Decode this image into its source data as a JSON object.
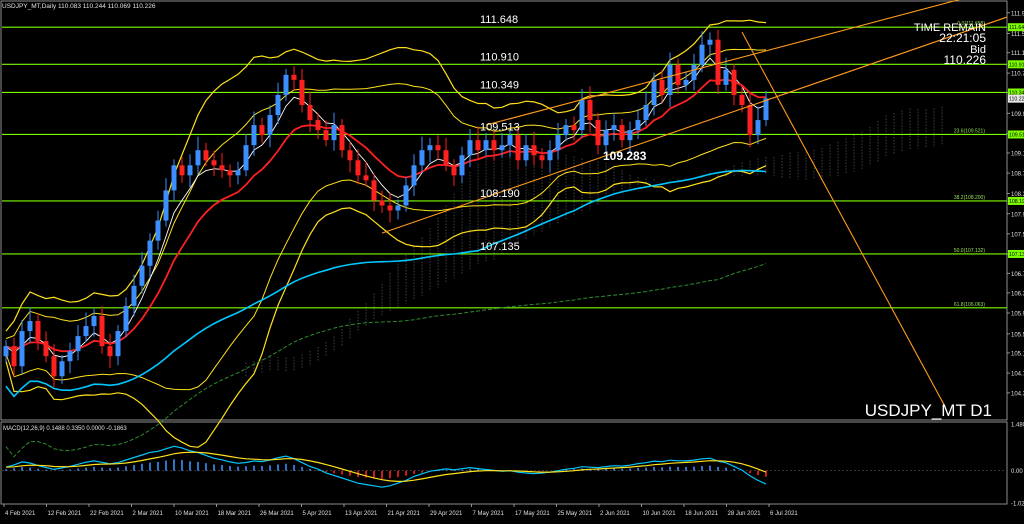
{
  "header": {
    "symbol_line": "USDJPY_MT,Daily  110.083 110.244 110.069 110.226"
  },
  "info_panel": {
    "time_label": "TIME REMAIN",
    "time_value": "22:21:05",
    "bid_label": "Bid",
    "bid_value": "110.226"
  },
  "watermark": "USDJPY_MT D1",
  "macd_label": "MACD(12,26,9) 0.1488 0.3350 0.0000 -0.1863",
  "colors": {
    "background": "#000000",
    "bull_candle": "#3d8eff",
    "bear_candle": "#ff2020",
    "horizontal_level": "#7CFC00",
    "ema_fast": "#ff2020",
    "ema_slow": "#ffffff",
    "bollinger": "#ffe11a",
    "ma_long": "#00c8ff",
    "ma_200": "#2e8b2e",
    "trend_channel": "#ff9b1a",
    "macd_line": "#00c8ff",
    "macd_signal": "#ffe11a"
  },
  "chart_data": [
    {
      "type": "line",
      "title": "USDJPY_MT,Daily",
      "xlabel": "",
      "ylabel": "",
      "ylim": [
        103.85,
        112.15
      ],
      "x_tick_labels": [
        "4 Feb 2021",
        "12 Feb 2021",
        "22 Feb 2021",
        "2 Mar 2021",
        "10 Mar 2021",
        "18 Mar 2021",
        "26 Mar 2021",
        "5 Apr 2021",
        "13 Apr 2021",
        "21 Apr 2021",
        "29 Apr 2021",
        "7 May 2021",
        "17 May 2021",
        "25 May 2021",
        "2 Jun 2021",
        "10 Jun 2021",
        "18 Jun 2021",
        "28 Jun 2021",
        "6 Jul 2021"
      ],
      "y_tick_labels": [
        "111.935",
        "111.525",
        "111.140",
        "110.735",
        "110.349",
        "109.935",
        "109.535",
        "109.145",
        "108.745",
        "108.340",
        "107.935",
        "107.535",
        "107.130",
        "106.750",
        "106.360",
        "105.960",
        "105.545",
        "105.165",
        "104.765",
        "104.370"
      ],
      "horizontal_levels": [
        {
          "label": "111.648",
          "value": 111.648,
          "fib": "0.0(111.658)"
        },
        {
          "label": "110.910",
          "value": 110.91,
          "fib": ""
        },
        {
          "label": "110.349",
          "value": 110.349,
          "fib": ""
        },
        {
          "label": "109.513",
          "value": 109.513,
          "fib": "23.6(109.521)"
        },
        {
          "label": "108.190",
          "value": 108.19,
          "fib": "38.2(108.200)"
        },
        {
          "label": "107.135",
          "value": 107.135,
          "fib": "50.0(107.132)"
        },
        {
          "label": "",
          "value": 106.063,
          "fib": "61.8(106.063)"
        }
      ],
      "level_tags": [
        "111.648",
        "110.910",
        "110.349",
        "109.513",
        "108.190",
        "107.135",
        "110.226"
      ],
      "annotation": "109.283",
      "close_series": [
        105.3,
        104.9,
        105.6,
        105.8,
        105.4,
        105.1,
        104.7,
        105.0,
        105.2,
        105.5,
        105.7,
        105.9,
        105.3,
        105.1,
        105.6,
        106.1,
        106.5,
        106.9,
        107.4,
        107.8,
        108.4,
        108.9,
        108.7,
        108.9,
        109.2,
        109.0,
        108.9,
        108.8,
        108.7,
        108.8,
        109.3,
        109.7,
        109.5,
        109.9,
        110.3,
        110.7,
        110.6,
        110.1,
        109.8,
        109.6,
        109.4,
        109.7,
        109.2,
        109.0,
        108.7,
        108.6,
        108.2,
        108.1,
        108.0,
        108.1,
        108.5,
        108.9,
        109.2,
        109.3,
        109.2,
        108.9,
        108.7,
        109.1,
        109.4,
        109.2,
        109.4,
        109.2,
        109.3,
        109.5,
        109.0,
        109.3,
        109.1,
        109.0,
        109.2,
        109.5,
        109.7,
        109.6,
        110.2,
        109.8,
        109.3,
        109.6,
        109.7,
        109.4,
        109.6,
        109.8,
        110.1,
        110.6,
        110.3,
        110.9,
        110.5,
        110.6,
        110.9,
        111.3,
        111.4,
        110.5,
        110.8,
        110.3,
        110.1,
        109.5,
        109.8,
        110.23
      ],
      "overlays": [
        "EMA fast (red)",
        "EMA slow (white)",
        "Bollinger bands (yellow)",
        "Long MA (cyan)",
        "Ichimoku cloud",
        "Upward trend channel",
        "Projection line"
      ]
    },
    {
      "type": "bar",
      "title": "MACD(12,26,9)",
      "xlabel": "",
      "ylabel": "",
      "ylim": [
        -1.0234,
        1.4803
      ],
      "y_tick_labels": [
        "1.4803",
        "0.00",
        "-1.0234"
      ],
      "series": [
        {
          "name": "",
          "values": [
            0.05,
            0.08,
            0.12,
            0.1,
            0.06,
            0.03,
            0.0,
            0.02,
            0.04,
            0.07,
            0.1,
            0.12,
            0.1,
            0.08,
            0.1,
            0.14,
            0.18,
            0.22,
            0.26,
            0.28,
            0.32,
            0.36,
            0.34,
            0.3,
            0.28,
            0.24,
            0.2,
            0.18,
            0.15,
            0.13,
            0.14,
            0.16,
            0.15,
            0.17,
            0.2,
            0.22,
            0.18,
            0.12,
            0.06,
            0.02,
            -0.04,
            -0.08,
            -0.12,
            -0.16,
            -0.2,
            -0.22,
            -0.24,
            -0.26,
            -0.24,
            -0.2,
            -0.16,
            -0.1,
            -0.06,
            -0.02,
            0.0,
            0.02,
            0.01,
            0.03,
            0.05,
            0.04,
            0.03,
            0.02,
            0.01,
            0.02,
            0.0,
            -0.01,
            -0.02,
            -0.01,
            0.0,
            0.02,
            0.04,
            0.05,
            0.07,
            0.06,
            0.05,
            0.06,
            0.07,
            0.06,
            0.07,
            0.09,
            0.1,
            0.12,
            0.11,
            0.13,
            0.12,
            0.12,
            0.13,
            0.15,
            0.16,
            0.12,
            0.1,
            0.05,
            0.0,
            -0.08,
            -0.14,
            -0.19
          ]
        }
      ]
    }
  ]
}
